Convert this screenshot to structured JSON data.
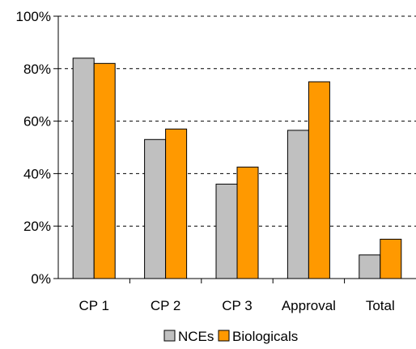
{
  "chart_data": {
    "type": "bar",
    "categories": [
      "CP 1",
      "CP 2",
      "CP 3",
      "Approval",
      "Total"
    ],
    "series": [
      {
        "name": "NCEs",
        "values": [
          84,
          53,
          36,
          56.5,
          9
        ],
        "color": "#c0c0c0"
      },
      {
        "name": "Biologicals",
        "values": [
          82,
          57,
          42.5,
          75,
          15
        ],
        "color": "#ff9900"
      }
    ],
    "ylim": [
      0,
      100
    ],
    "yticks": [
      0,
      20,
      40,
      60,
      80,
      100
    ],
    "ytick_labels": [
      "0%",
      "20%",
      "40%",
      "60%",
      "80%",
      "100%"
    ],
    "grid": true,
    "grid_style": "dashed",
    "legend_position": "bottom-center"
  }
}
